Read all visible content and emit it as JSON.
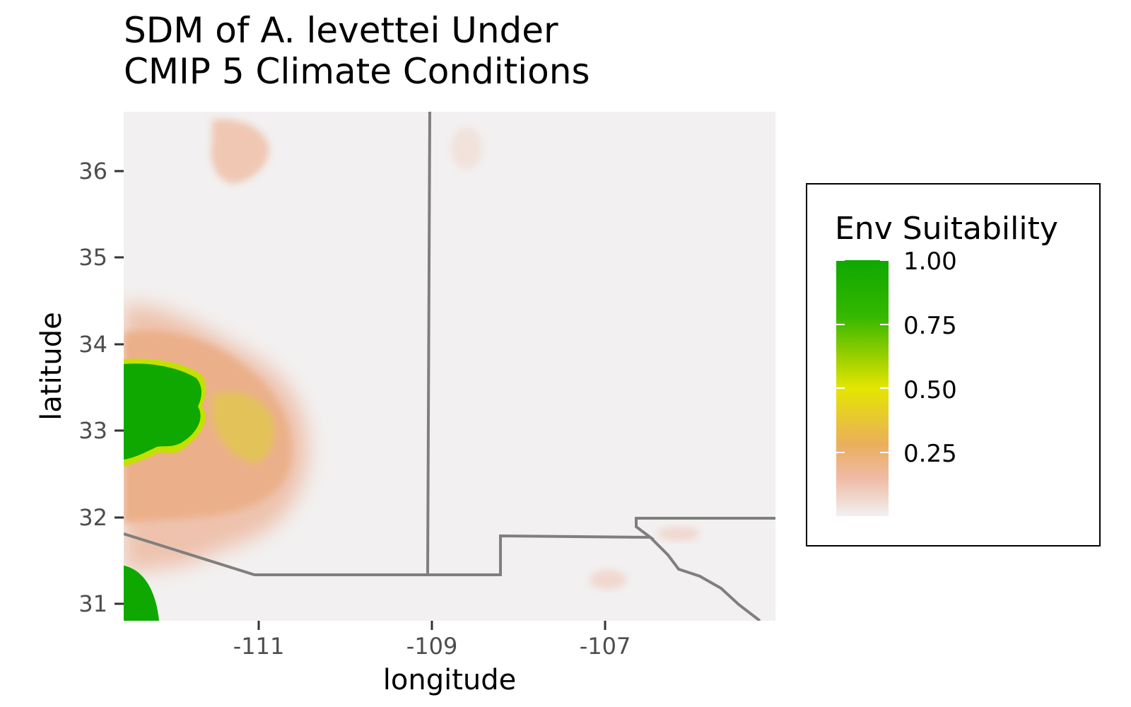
{
  "title": {
    "line1": "SDM of A. levettei Under",
    "line2": "CMIP 5 Climate Conditions"
  },
  "axes": {
    "xlabel": "longitude",
    "ylabel": "latitude",
    "x_ticks": [
      "-111",
      "-109",
      "-107"
    ],
    "y_ticks": [
      "36",
      "35",
      "34",
      "33",
      "32",
      "31"
    ]
  },
  "legend": {
    "title": "Env Suitability",
    "labels": [
      "1.00",
      "0.75",
      "0.50",
      "0.25"
    ]
  },
  "map_data": {
    "type": "raster",
    "extent": {
      "lon": [
        -112.6,
        -105.0
      ],
      "lat": [
        30.85,
        36.75
      ]
    },
    "x_ticks": [
      -111,
      -109,
      -107
    ],
    "y_ticks": [
      31,
      32,
      33,
      34,
      35,
      36
    ],
    "value_range": [
      0,
      1
    ],
    "color_scale": [
      "#f2f0f0",
      "#efbaa4",
      "#ebae5d",
      "#e4e600",
      "#35b800",
      "#0ea800"
    ],
    "regions": [
      {
        "name": "high-suitability-west",
        "value": 0.95
      },
      {
        "name": "moderate-suitability-west",
        "value": 0.3
      },
      {
        "name": "high-suitability-southwest",
        "value": 0.95
      }
    ],
    "boundary_color": "#7f7f7f"
  }
}
